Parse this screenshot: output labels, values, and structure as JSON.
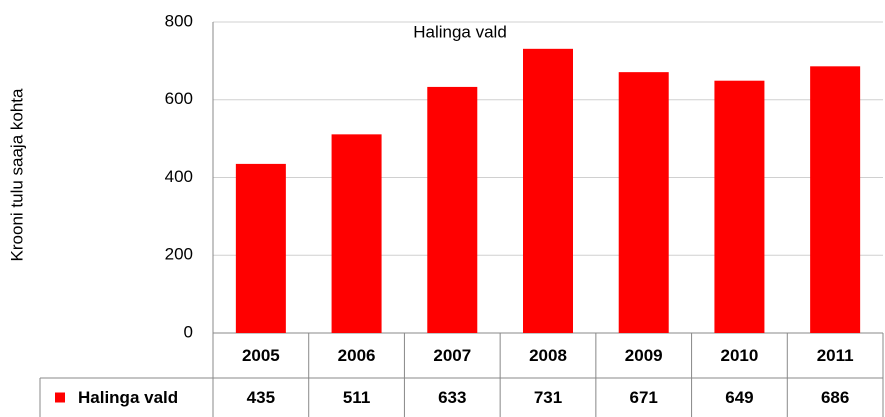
{
  "chart_data": {
    "type": "bar",
    "title": "Halinga vald",
    "y_label": "Krooni tulu saaja kohta",
    "categories": [
      "2005",
      "2006",
      "2007",
      "2008",
      "2009",
      "2010",
      "2011"
    ],
    "series": [
      {
        "name": "Halinga vald",
        "color": "#ff0000",
        "values": [
          435,
          511,
          633,
          731,
          671,
          649,
          686
        ]
      }
    ],
    "ylim": [
      0,
      800
    ],
    "yticks": [
      0,
      200,
      400,
      600,
      800
    ],
    "grid": true,
    "data_table": true
  }
}
